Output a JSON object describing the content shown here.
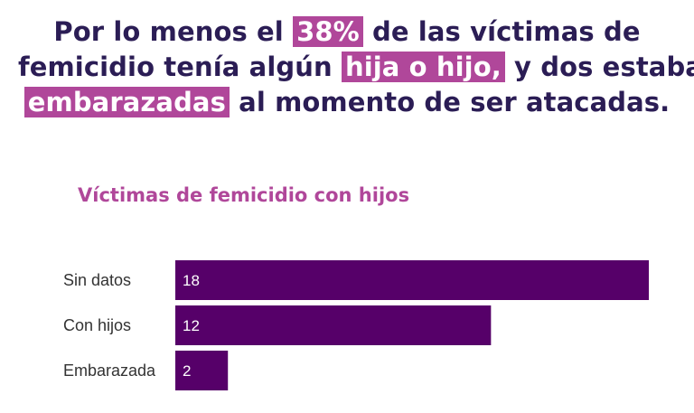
{
  "headline": {
    "line1_a": "Por lo menos el",
    "line1_hl": "38%",
    "line1_b": "de las víctimas de",
    "line2_a": "femicidio tenía algún",
    "line2_hl": "hija o hijo,",
    "line2_b": "y dos estaban",
    "line3_hl": "embarazadas",
    "line3_b": "al momento de ser atacadas."
  },
  "colors": {
    "headline": "#2b1d55",
    "accent": "#b0479a",
    "bar": "#560069"
  },
  "chart_data": {
    "type": "bar",
    "orientation": "horizontal",
    "title": "Víctimas de femicidio con hijos",
    "categories": [
      "Sin datos",
      "Con hijos",
      "Embarazada"
    ],
    "values": [
      18,
      12,
      2
    ],
    "xlim": [
      0,
      18
    ],
    "grid": false,
    "legend": "none"
  }
}
